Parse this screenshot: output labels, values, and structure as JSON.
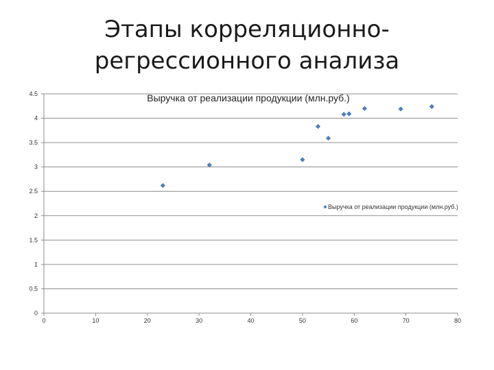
{
  "slide": {
    "title_line1": "Этапы корреляционно-",
    "title_line2": "регрессионного анализа"
  },
  "chart_data": {
    "type": "scatter",
    "title": "Выручка от реализации продукции (млн.руб.)",
    "xlabel": "",
    "ylabel": "",
    "xlim": [
      0,
      80
    ],
    "ylim": [
      0,
      4.5
    ],
    "xticks": [
      0,
      10,
      20,
      30,
      40,
      50,
      60,
      70,
      80
    ],
    "yticks": [
      0,
      0.5,
      1,
      1.5,
      2,
      2.5,
      3,
      3.5,
      4,
      4.5
    ],
    "grid": "horizontal",
    "legend_position": "right",
    "marker_color": "#4a7ebb",
    "series": [
      {
        "name": "Выручка от реализации продукции (млн.руб.)",
        "x": [
          23,
          32,
          50,
          53,
          55,
          58,
          59,
          62,
          69,
          75
        ],
        "y": [
          2.62,
          3.04,
          3.15,
          3.83,
          3.59,
          4.08,
          4.09,
          4.2,
          4.19,
          4.24
        ]
      }
    ]
  }
}
